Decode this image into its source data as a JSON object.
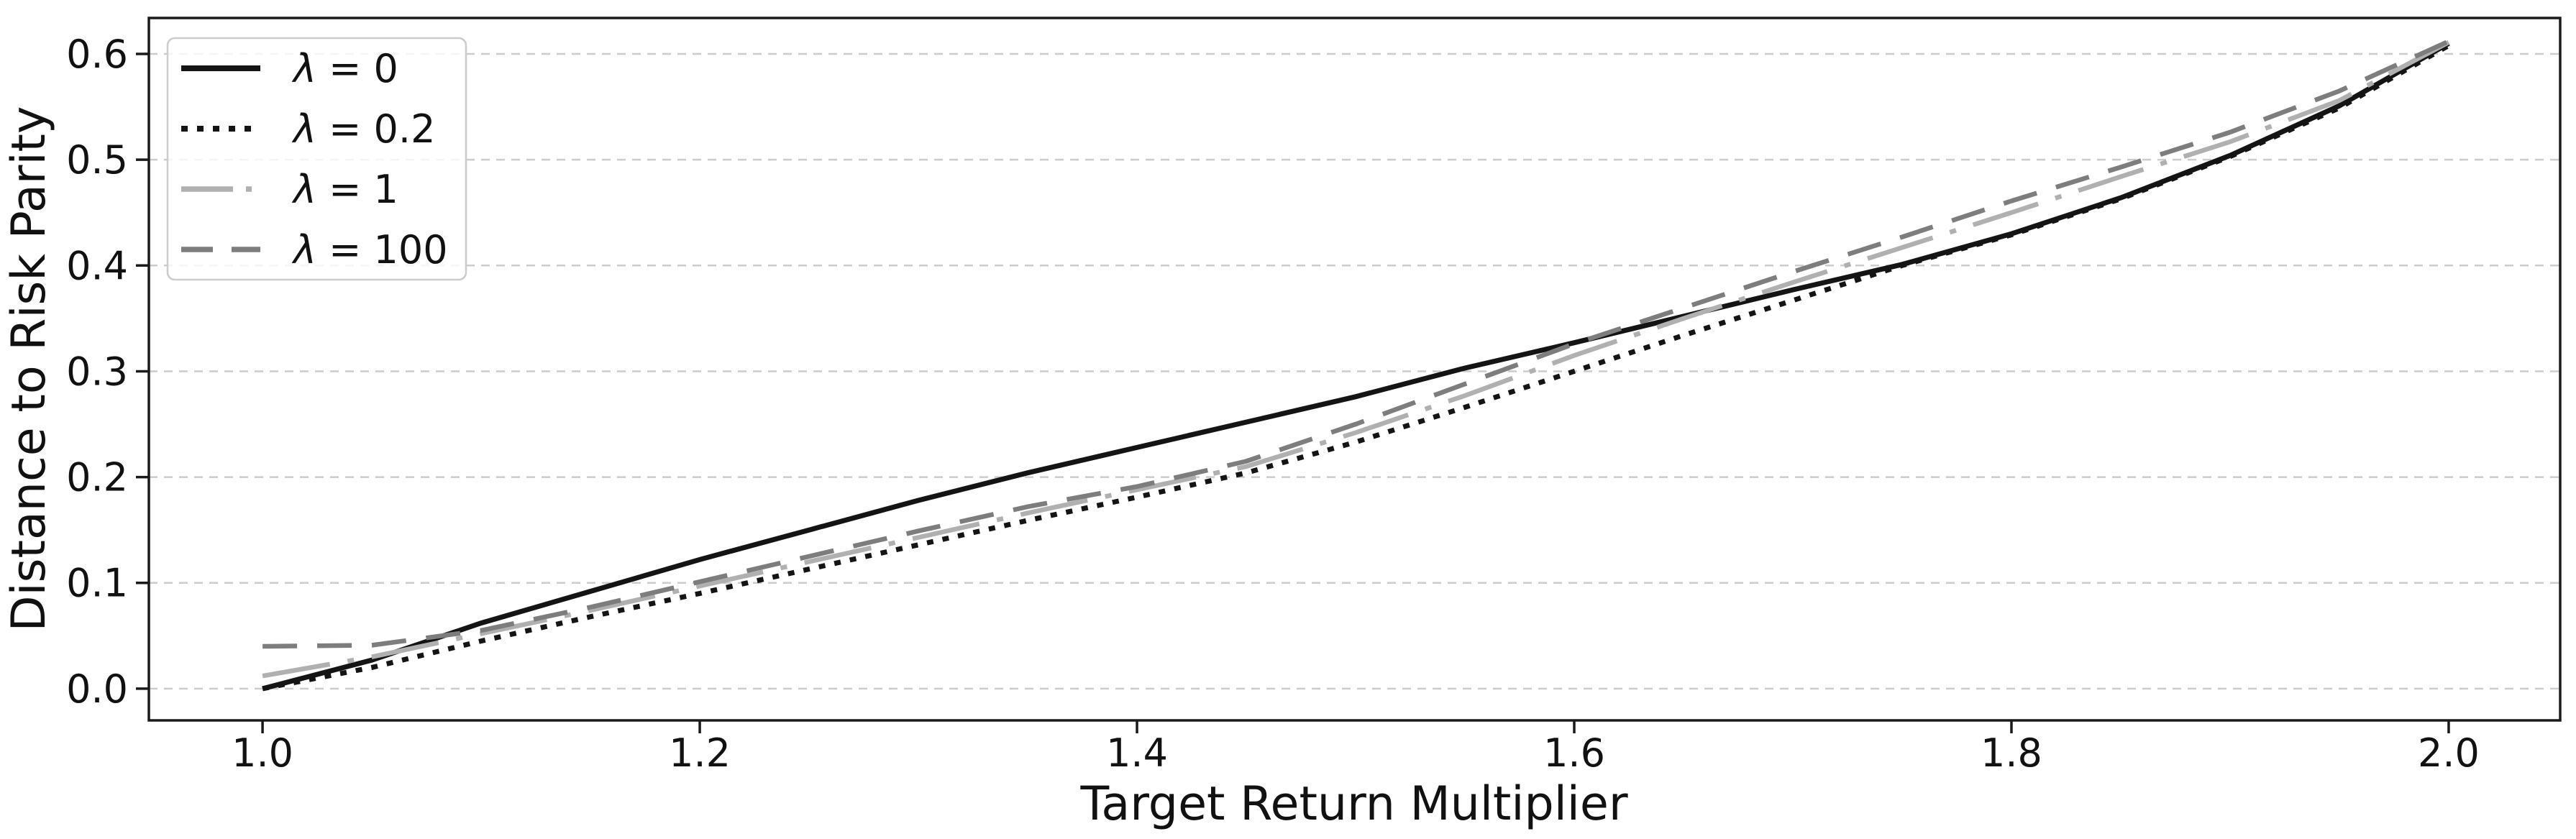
{
  "figure": {
    "background": "#ffffff",
    "spine_color": "#1a1a1a",
    "tick_color": "#1a1a1a",
    "text_color": "#111111"
  },
  "chart_data": {
    "type": "line",
    "title": "",
    "xlabel": "Target Return Multiplier",
    "ylabel": "Distance to Risk Parity",
    "xlim": [
      0.948,
      2.051
    ],
    "ylim": [
      -0.03,
      0.634
    ],
    "x_ticks": [
      1.0,
      1.2,
      1.4,
      1.6,
      1.8,
      2.0
    ],
    "y_ticks": [
      0.0,
      0.1,
      0.2,
      0.3,
      0.4,
      0.5,
      0.6
    ],
    "grid": {
      "axis": "y",
      "style": "dashed",
      "color": "#cccccc"
    },
    "legend": {
      "position": "upper left",
      "border_color": "#cccccc",
      "background_opacity": 0.8
    },
    "x": [
      1.0,
      1.05,
      1.1,
      1.15,
      1.2,
      1.25,
      1.3,
      1.35,
      1.4,
      1.45,
      1.5,
      1.55,
      1.6,
      1.65,
      1.7,
      1.75,
      1.8,
      1.85,
      1.9,
      1.95,
      2.0
    ],
    "series": [
      {
        "name": "λ = 0",
        "style": "solid",
        "color": "#141414",
        "linewidth": 7,
        "values": [
          0.0,
          0.027,
          0.062,
          0.092,
          0.122,
          0.15,
          0.178,
          0.204,
          0.228,
          0.252,
          0.276,
          0.303,
          0.327,
          0.352,
          0.377,
          0.401,
          0.43,
          0.464,
          0.504,
          0.551,
          0.61
        ]
      },
      {
        "name": "λ = 0.2",
        "style": "dotted",
        "color": "#141414",
        "linewidth": 7,
        "values": [
          0.0,
          0.02,
          0.045,
          0.068,
          0.09,
          0.113,
          0.136,
          0.159,
          0.181,
          0.204,
          0.233,
          0.266,
          0.3,
          0.334,
          0.367,
          0.4,
          0.429,
          0.463,
          0.503,
          0.549,
          0.608
        ]
      },
      {
        "name": "λ = 1",
        "style": "dashdot",
        "color": "#b0b0b0",
        "linewidth": 6.5,
        "values": [
          0.012,
          0.03,
          0.052,
          0.074,
          0.097,
          0.12,
          0.143,
          0.166,
          0.188,
          0.21,
          0.242,
          0.277,
          0.315,
          0.35,
          0.384,
          0.417,
          0.45,
          0.484,
          0.517,
          0.556,
          0.611
        ]
      },
      {
        "name": "λ = 100",
        "style": "dashed",
        "color": "#7d7d7d",
        "linewidth": 6.5,
        "values": [
          0.04,
          0.041,
          0.055,
          0.077,
          0.101,
          0.125,
          0.149,
          0.172,
          0.191,
          0.215,
          0.25,
          0.288,
          0.326,
          0.36,
          0.394,
          0.427,
          0.461,
          0.493,
          0.526,
          0.565,
          0.612
        ]
      }
    ]
  }
}
